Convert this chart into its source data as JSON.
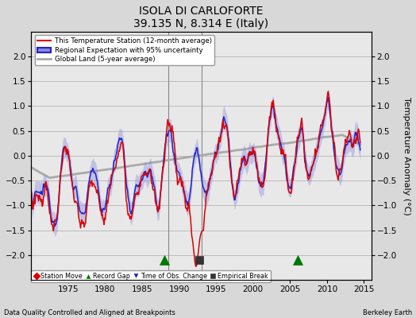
{
  "title": "ISOLA DI CARLOFORTE",
  "subtitle": "39.135 N, 8.314 E (Italy)",
  "xlabel_left": "Data Quality Controlled and Aligned at Breakpoints",
  "xlabel_right": "Berkeley Earth",
  "ylabel": "Temperature Anomaly (°C)",
  "xlim": [
    1970,
    2016
  ],
  "ylim": [
    -2.5,
    2.5
  ],
  "yticks": [
    -2,
    -1.5,
    -1,
    -0.5,
    0,
    0.5,
    1,
    1.5,
    2
  ],
  "xticks": [
    1975,
    1980,
    1985,
    1990,
    1995,
    2000,
    2005,
    2010,
    2015
  ],
  "bg_color": "#d8d8d8",
  "plot_bg_color": "#e8e8e8",
  "grid_color": "#bbbbbb",
  "vline_color": "#888888",
  "vlines": [
    1988.5,
    1993.0
  ],
  "red_line_color": "#dd0000",
  "blue_line_color": "#2222cc",
  "blue_band_color": "#8888dd",
  "gray_line_color": "#aaaaaa",
  "legend_entries": [
    {
      "label": "This Temperature Station (12-month average)",
      "color": "#dd0000"
    },
    {
      "label": "Regional Expectation with 95% uncertainty",
      "color": "#2222cc"
    },
    {
      "label": "Global Land (5-year average)",
      "color": "#aaaaaa"
    }
  ],
  "marker_y": -2.1,
  "markers": [
    {
      "x": 1988.0,
      "color": "#007700",
      "shape": "^",
      "size": 8
    },
    {
      "x": 1992.7,
      "color": "#333333",
      "shape": "s",
      "size": 7
    },
    {
      "x": 2006.0,
      "color": "#007700",
      "shape": "^",
      "size": 8
    }
  ],
  "bottom_legend": [
    {
      "label": "Station Move",
      "color": "#dd0000",
      "marker": "D"
    },
    {
      "label": "Record Gap",
      "color": "#007700",
      "marker": "^"
    },
    {
      "label": "Time of Obs. Change",
      "color": "#2222bb",
      "marker": "v"
    },
    {
      "label": "Empirical Break",
      "color": "#333333",
      "marker": "s"
    }
  ]
}
